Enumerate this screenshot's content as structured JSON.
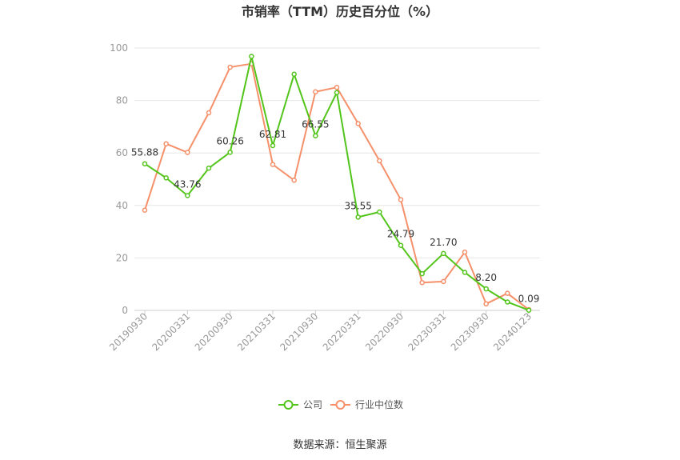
{
  "chart_data": {
    "type": "line",
    "title": "市销率（TTM）历史百分位（%）",
    "xlabel": "",
    "ylabel": "",
    "ylim": [
      0,
      100
    ],
    "yticks": [
      0,
      20,
      40,
      60,
      80,
      100
    ],
    "x": [
      "20190930",
      "20191231",
      "20200331",
      "20200630",
      "20200930",
      "20201231",
      "20210331",
      "20210630",
      "20210930",
      "20211231",
      "20220331",
      "20220630",
      "20220930",
      "20221231",
      "20230331",
      "20230630",
      "20230930",
      "20231231",
      "20240123"
    ],
    "xtick_labels": [
      "20190930",
      "20200331",
      "20200930",
      "20210331",
      "20210930",
      "20220331",
      "20220930",
      "20230331",
      "20230930",
      "20240123"
    ],
    "series": [
      {
        "name": "公司",
        "color": "#52c41a",
        "values": [
          55.88,
          50.5,
          43.76,
          54.2,
          60.26,
          96.8,
          62.81,
          90.0,
          66.55,
          83.0,
          35.55,
          37.5,
          24.79,
          14.0,
          21.7,
          14.5,
          8.2,
          3.2,
          0.09
        ],
        "labels": {
          "0": "55.88",
          "2": "43.76",
          "4": "60.26",
          "6": "62.81",
          "8": "66.55",
          "10": "35.55",
          "12": "24.79",
          "14": "21.70",
          "16": "8.20",
          "18": "0.09"
        }
      },
      {
        "name": "行业中位数",
        "color": "#f5906a",
        "values": [
          38.2,
          63.5,
          60.2,
          75.3,
          92.7,
          94.0,
          55.6,
          49.6,
          83.3,
          85.0,
          71.2,
          57.0,
          42.2,
          10.6,
          11.0,
          22.2,
          2.5,
          6.5,
          0.3
        ]
      }
    ],
    "grid": true,
    "legend": "bottom-center"
  },
  "source": "数据来源：恒生聚源"
}
